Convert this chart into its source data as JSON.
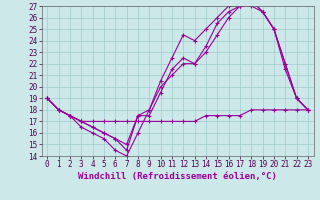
{
  "xlabel": "Windchill (Refroidissement éolien,°C)",
  "background_color": "#cce8e8",
  "line_color": "#990099",
  "xlim": [
    -0.5,
    23.5
  ],
  "ylim": [
    14,
    27
  ],
  "yticks": [
    14,
    15,
    16,
    17,
    18,
    19,
    20,
    21,
    22,
    23,
    24,
    25,
    26,
    27
  ],
  "xticks": [
    0,
    1,
    2,
    3,
    4,
    5,
    6,
    7,
    8,
    9,
    10,
    11,
    12,
    13,
    14,
    15,
    16,
    17,
    18,
    19,
    20,
    21,
    22,
    23
  ],
  "series": [
    [
      19.0,
      18.0,
      17.5,
      16.5,
      16.0,
      15.5,
      14.5,
      14.0,
      16.0,
      18.0,
      20.5,
      22.5,
      24.5,
      24.0,
      25.0,
      26.0,
      27.0,
      27.0,
      27.5,
      26.5,
      25.0,
      21.5,
      19.0,
      18.0
    ],
    [
      19.0,
      18.0,
      17.5,
      17.0,
      16.5,
      16.0,
      15.5,
      14.5,
      17.5,
      17.5,
      19.5,
      21.5,
      22.5,
      22.0,
      23.5,
      25.5,
      26.5,
      27.0,
      27.0,
      26.5,
      25.0,
      22.0,
      19.0,
      18.0
    ],
    [
      19.0,
      18.0,
      17.5,
      17.0,
      16.5,
      16.0,
      15.5,
      15.0,
      17.5,
      18.0,
      20.0,
      21.0,
      22.0,
      22.0,
      23.0,
      24.5,
      26.0,
      27.0,
      27.5,
      26.5,
      25.0,
      22.0,
      19.0,
      18.0
    ],
    [
      19.0,
      18.0,
      17.5,
      17.0,
      17.0,
      17.0,
      17.0,
      17.0,
      17.0,
      17.0,
      17.0,
      17.0,
      17.0,
      17.0,
      17.5,
      17.5,
      17.5,
      17.5,
      18.0,
      18.0,
      18.0,
      18.0,
      18.0,
      18.0
    ]
  ],
  "marker": "+",
  "markersize": 3,
  "linewidth": 0.8,
  "grid_color": "#a0cccc",
  "xlabel_fontsize": 6.5,
  "tick_fontsize": 5.5
}
